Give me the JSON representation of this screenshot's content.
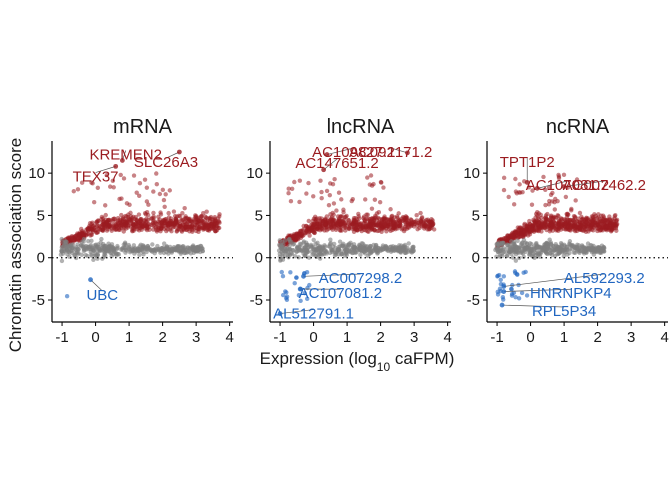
{
  "chart_data": {
    "type": "scatter",
    "ylabel": "Chromatin association score",
    "xlabel_main": "Expression (log",
    "xlabel_sub": "10",
    "xlabel_tail": " caFPM)",
    "xlim": [
      -1.3,
      4.1
    ],
    "ylim": [
      -7.6,
      13.8
    ],
    "x_ticks": [
      "-1",
      "0",
      "1",
      "2",
      "3",
      "4"
    ],
    "y_ticks": [
      "-5",
      "0",
      "5",
      "10"
    ],
    "colors": {
      "up": "#9b1c20",
      "neutral": "#7f7f7f",
      "down": "#2166c0"
    },
    "panels": [
      {
        "title": "mRNA",
        "cloud": {
          "up_xmax": 3.7,
          "up_top": 7.6,
          "neutral_xmax": 3.2,
          "down_n": 1
        },
        "labels": [
          {
            "text": "KREMEN2",
            "x": 0.9,
            "y": 12.2,
            "px": 0.8,
            "py": 11.5,
            "cls": "up"
          },
          {
            "text": "SLC26A3",
            "x": 2.1,
            "y": 11.3,
            "px": 2.5,
            "py": 12.5,
            "cls": "up"
          },
          {
            "text": "TEX37",
            "x": 0.0,
            "y": 9.6,
            "px": 0.6,
            "py": 10.8,
            "cls": "up"
          },
          {
            "text": "UBC",
            "x": 0.2,
            "y": -4.4,
            "px": -0.15,
            "py": -2.6,
            "cls": "down"
          }
        ]
      },
      {
        "title": "lncRNA",
        "cloud": {
          "up_xmax": 3.6,
          "up_top": 8.0,
          "neutral_xmax": 3.0,
          "down_n": 22
        },
        "labels": [
          {
            "text": "AC109827.1",
            "x": 1.2,
            "y": 12.5,
            "px": 0.4,
            "py": 12.2,
            "cls": "up"
          },
          {
            "text": "AC092171.2",
            "x": 2.3,
            "y": 12.5,
            "px": 2.8,
            "py": 12.4,
            "cls": "up"
          },
          {
            "text": "AC147651.2",
            "x": 0.7,
            "y": 11.2,
            "px": 0.3,
            "py": 10.4,
            "cls": "up"
          },
          {
            "text": "AC007298.2",
            "x": 1.4,
            "y": -2.4,
            "px": -0.3,
            "py": -2.2,
            "cls": "down"
          },
          {
            "text": "AC107081.2",
            "x": 0.8,
            "y": -4.2,
            "px": -0.4,
            "py": -3.7,
            "cls": "down"
          },
          {
            "text": "AL512791.1",
            "x": 0.0,
            "y": -6.6,
            "px": -1.0,
            "py": -6.6,
            "cls": "down"
          }
        ]
      },
      {
        "title": "ncRNA",
        "cloud": {
          "up_xmax": 2.6,
          "up_top": 7.0,
          "neutral_xmax": 2.2,
          "down_n": 30
        },
        "labels": [
          {
            "text": "TPT1P2",
            "x": -0.1,
            "y": 11.3,
            "px": -0.1,
            "py": 8.9,
            "cls": "up"
          },
          {
            "text": "AC107081.2",
            "x": 1.1,
            "y": 8.6,
            "px": 0.2,
            "py": 8.2,
            "cls": "up"
          },
          {
            "text": "AC007462.2",
            "x": 2.2,
            "y": 8.6,
            "px": 1.0,
            "py": 8.4,
            "cls": "up"
          },
          {
            "text": "AL592293.2",
            "x": 2.2,
            "y": -2.4,
            "px": -0.8,
            "py": -3.4,
            "cls": "down"
          },
          {
            "text": "HNRNPKP4",
            "x": 1.2,
            "y": -4.2,
            "px": -0.8,
            "py": -4.0,
            "cls": "down"
          },
          {
            "text": "RPL5P34",
            "x": 1.0,
            "y": -6.3,
            "px": -0.85,
            "py": -5.6,
            "cls": "down"
          }
        ]
      }
    ]
  }
}
